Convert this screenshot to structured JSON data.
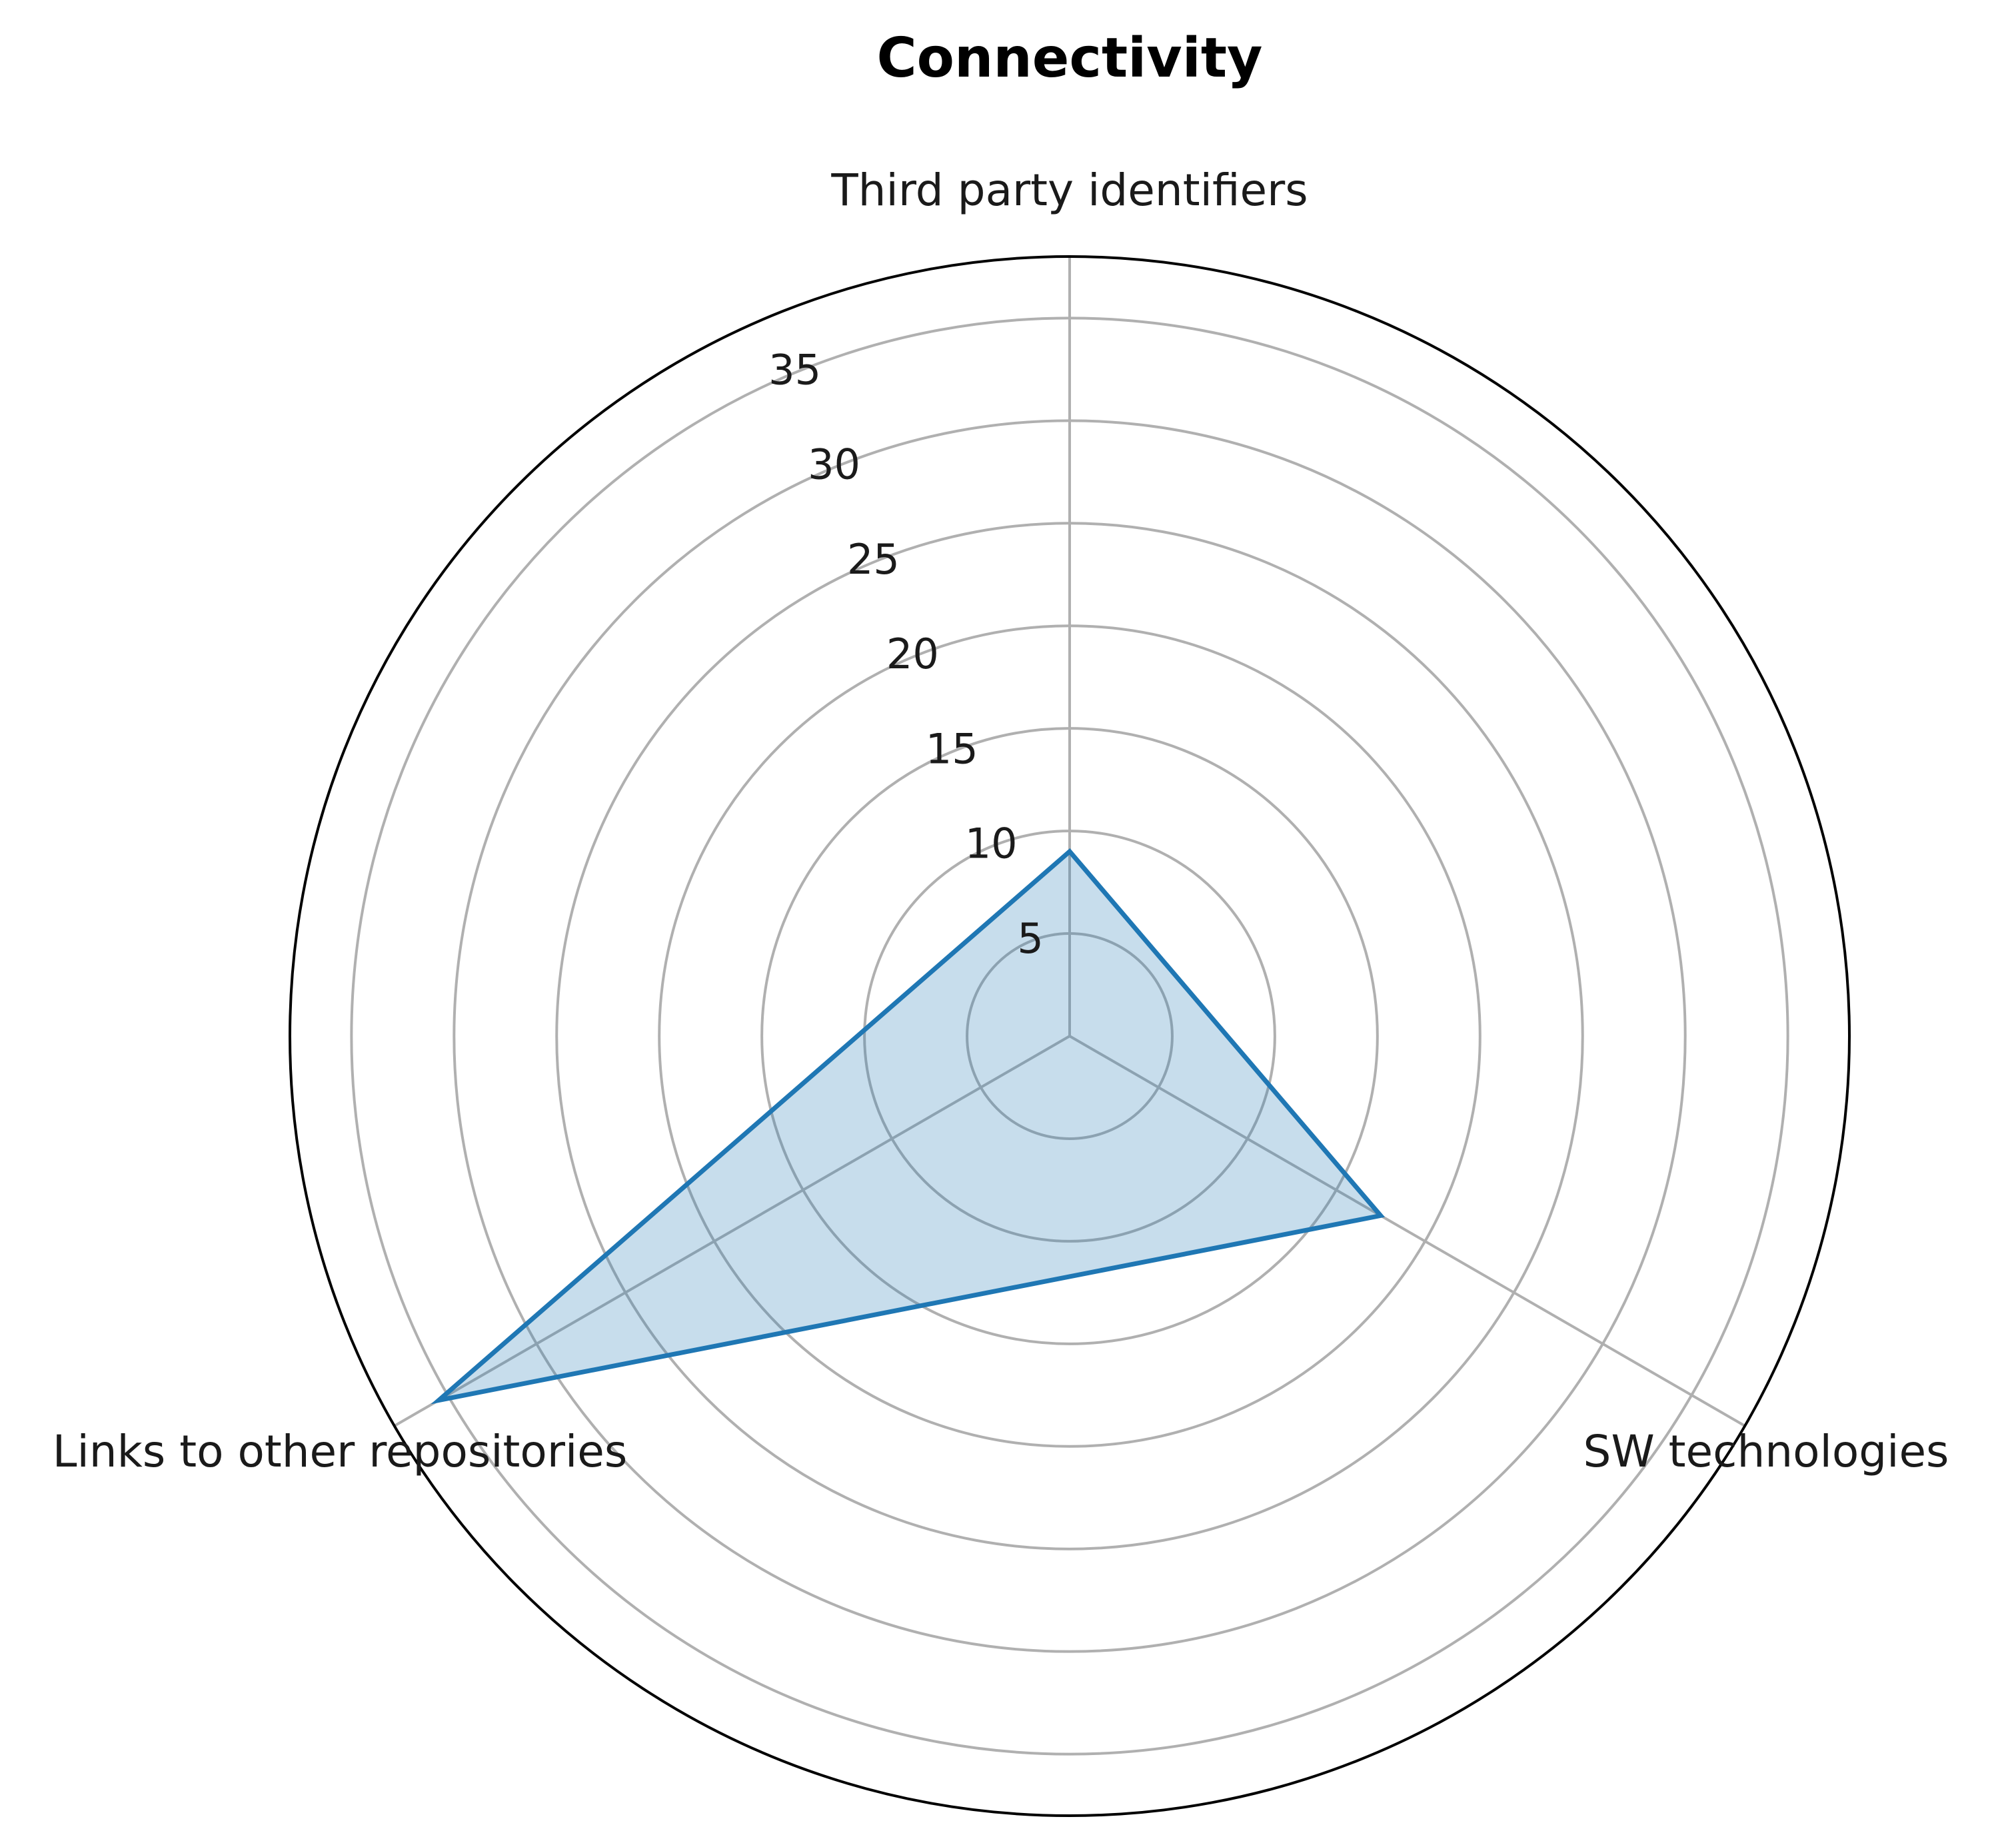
{
  "chart_data": {
    "type": "radar",
    "title": "Connectivity",
    "axes": [
      "Third party identifiers",
      "SW technologies",
      "Links to other repositories"
    ],
    "series": [
      {
        "values": [
          9,
          17.5,
          35.5
        ]
      }
    ],
    "r_ticks": [
      5,
      10,
      15,
      20,
      25,
      30,
      35
    ],
    "rlim": [
      0,
      38
    ],
    "grid": true,
    "colors": {
      "line": "#1f77b4",
      "fill": "#1f77b4",
      "fill_opacity": 0.25,
      "grid": "#b0b0b0",
      "frame": "#000000"
    }
  }
}
